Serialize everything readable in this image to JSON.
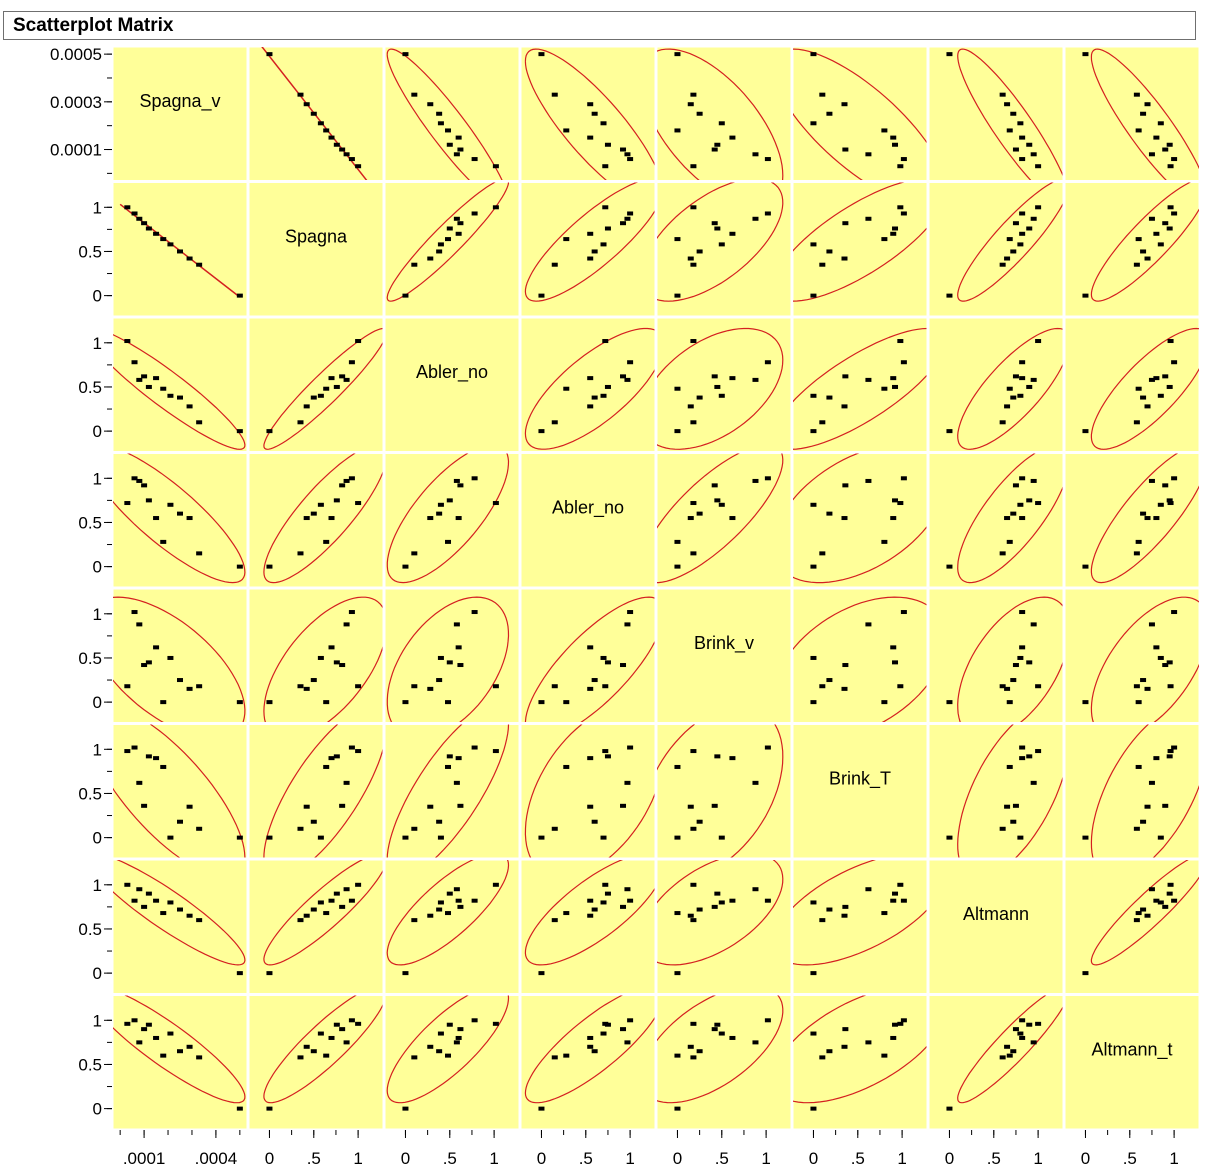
{
  "window": {
    "title": "Scatterplot Matrix"
  },
  "chart_data": {
    "type": "scatter",
    "subtype": "scatterplot-matrix",
    "title": "Scatterplot Matrix",
    "variables": [
      "Spagna_v",
      "Spagna",
      "Abler_no",
      "Abler_no",
      "Brink_v",
      "Brink_T",
      "Altmann",
      "Altmann_t"
    ],
    "panel_fill": "#ffff99",
    "point_color": "#000000",
    "ellipse_color": "#d42020",
    "fit_line_color": "#d42020",
    "grid_line_color": "#ffffff",
    "y_axis_ticks": {
      "first_row": [
        "0.0005",
        "0.0003",
        "0.0001"
      ],
      "other_rows": [
        "1",
        "0.5",
        "0"
      ]
    },
    "x_axis_ticks": {
      "first_col": [
        ".0001",
        ".0004"
      ],
      "other_cols": [
        "0",
        ".5",
        "1"
      ]
    },
    "v1_range": [
      0,
      0.0005
    ],
    "v1_values": [
      0.0005,
      0.00033,
      0.00029,
      0.00025,
      0.00021,
      0.00018,
      0.00015,
      0.00012,
      0.0001,
      8e-05,
      6e-05,
      3e-05
    ],
    "other_range": [
      -0.15,
      1.2
    ],
    "values": [
      [
        0.0005,
        0.00033,
        0.00029,
        0.00025,
        0.00021,
        0.00018,
        0.00015,
        0.00012,
        0.0001,
        8e-05,
        6e-05,
        3e-05
      ],
      [
        0.0,
        0.35,
        0.42,
        0.5,
        0.58,
        0.64,
        0.7,
        0.76,
        0.82,
        0.87,
        0.93,
        1.0
      ],
      [
        0.0,
        0.1,
        0.28,
        0.38,
        0.4,
        0.48,
        0.6,
        0.5,
        0.62,
        0.58,
        0.78,
        1.02
      ],
      [
        0.0,
        0.15,
        0.55,
        0.6,
        0.7,
        0.28,
        0.55,
        0.75,
        0.92,
        0.97,
        1.0,
        0.72
      ],
      [
        0.0,
        0.18,
        0.15,
        0.25,
        0.5,
        0.0,
        0.62,
        0.45,
        0.42,
        0.88,
        1.02,
        0.18
      ],
      [
        0.0,
        0.1,
        0.35,
        0.18,
        0.0,
        0.8,
        0.9,
        0.92,
        0.36,
        0.62,
        1.02,
        0.98
      ],
      [
        0.0,
        0.6,
        0.65,
        0.72,
        0.8,
        0.68,
        0.82,
        0.9,
        0.75,
        0.95,
        0.82,
        1.0
      ],
      [
        0.0,
        0.58,
        0.7,
        0.65,
        0.85,
        0.6,
        0.8,
        0.95,
        0.9,
        0.75,
        1.0,
        0.96
      ]
    ]
  }
}
